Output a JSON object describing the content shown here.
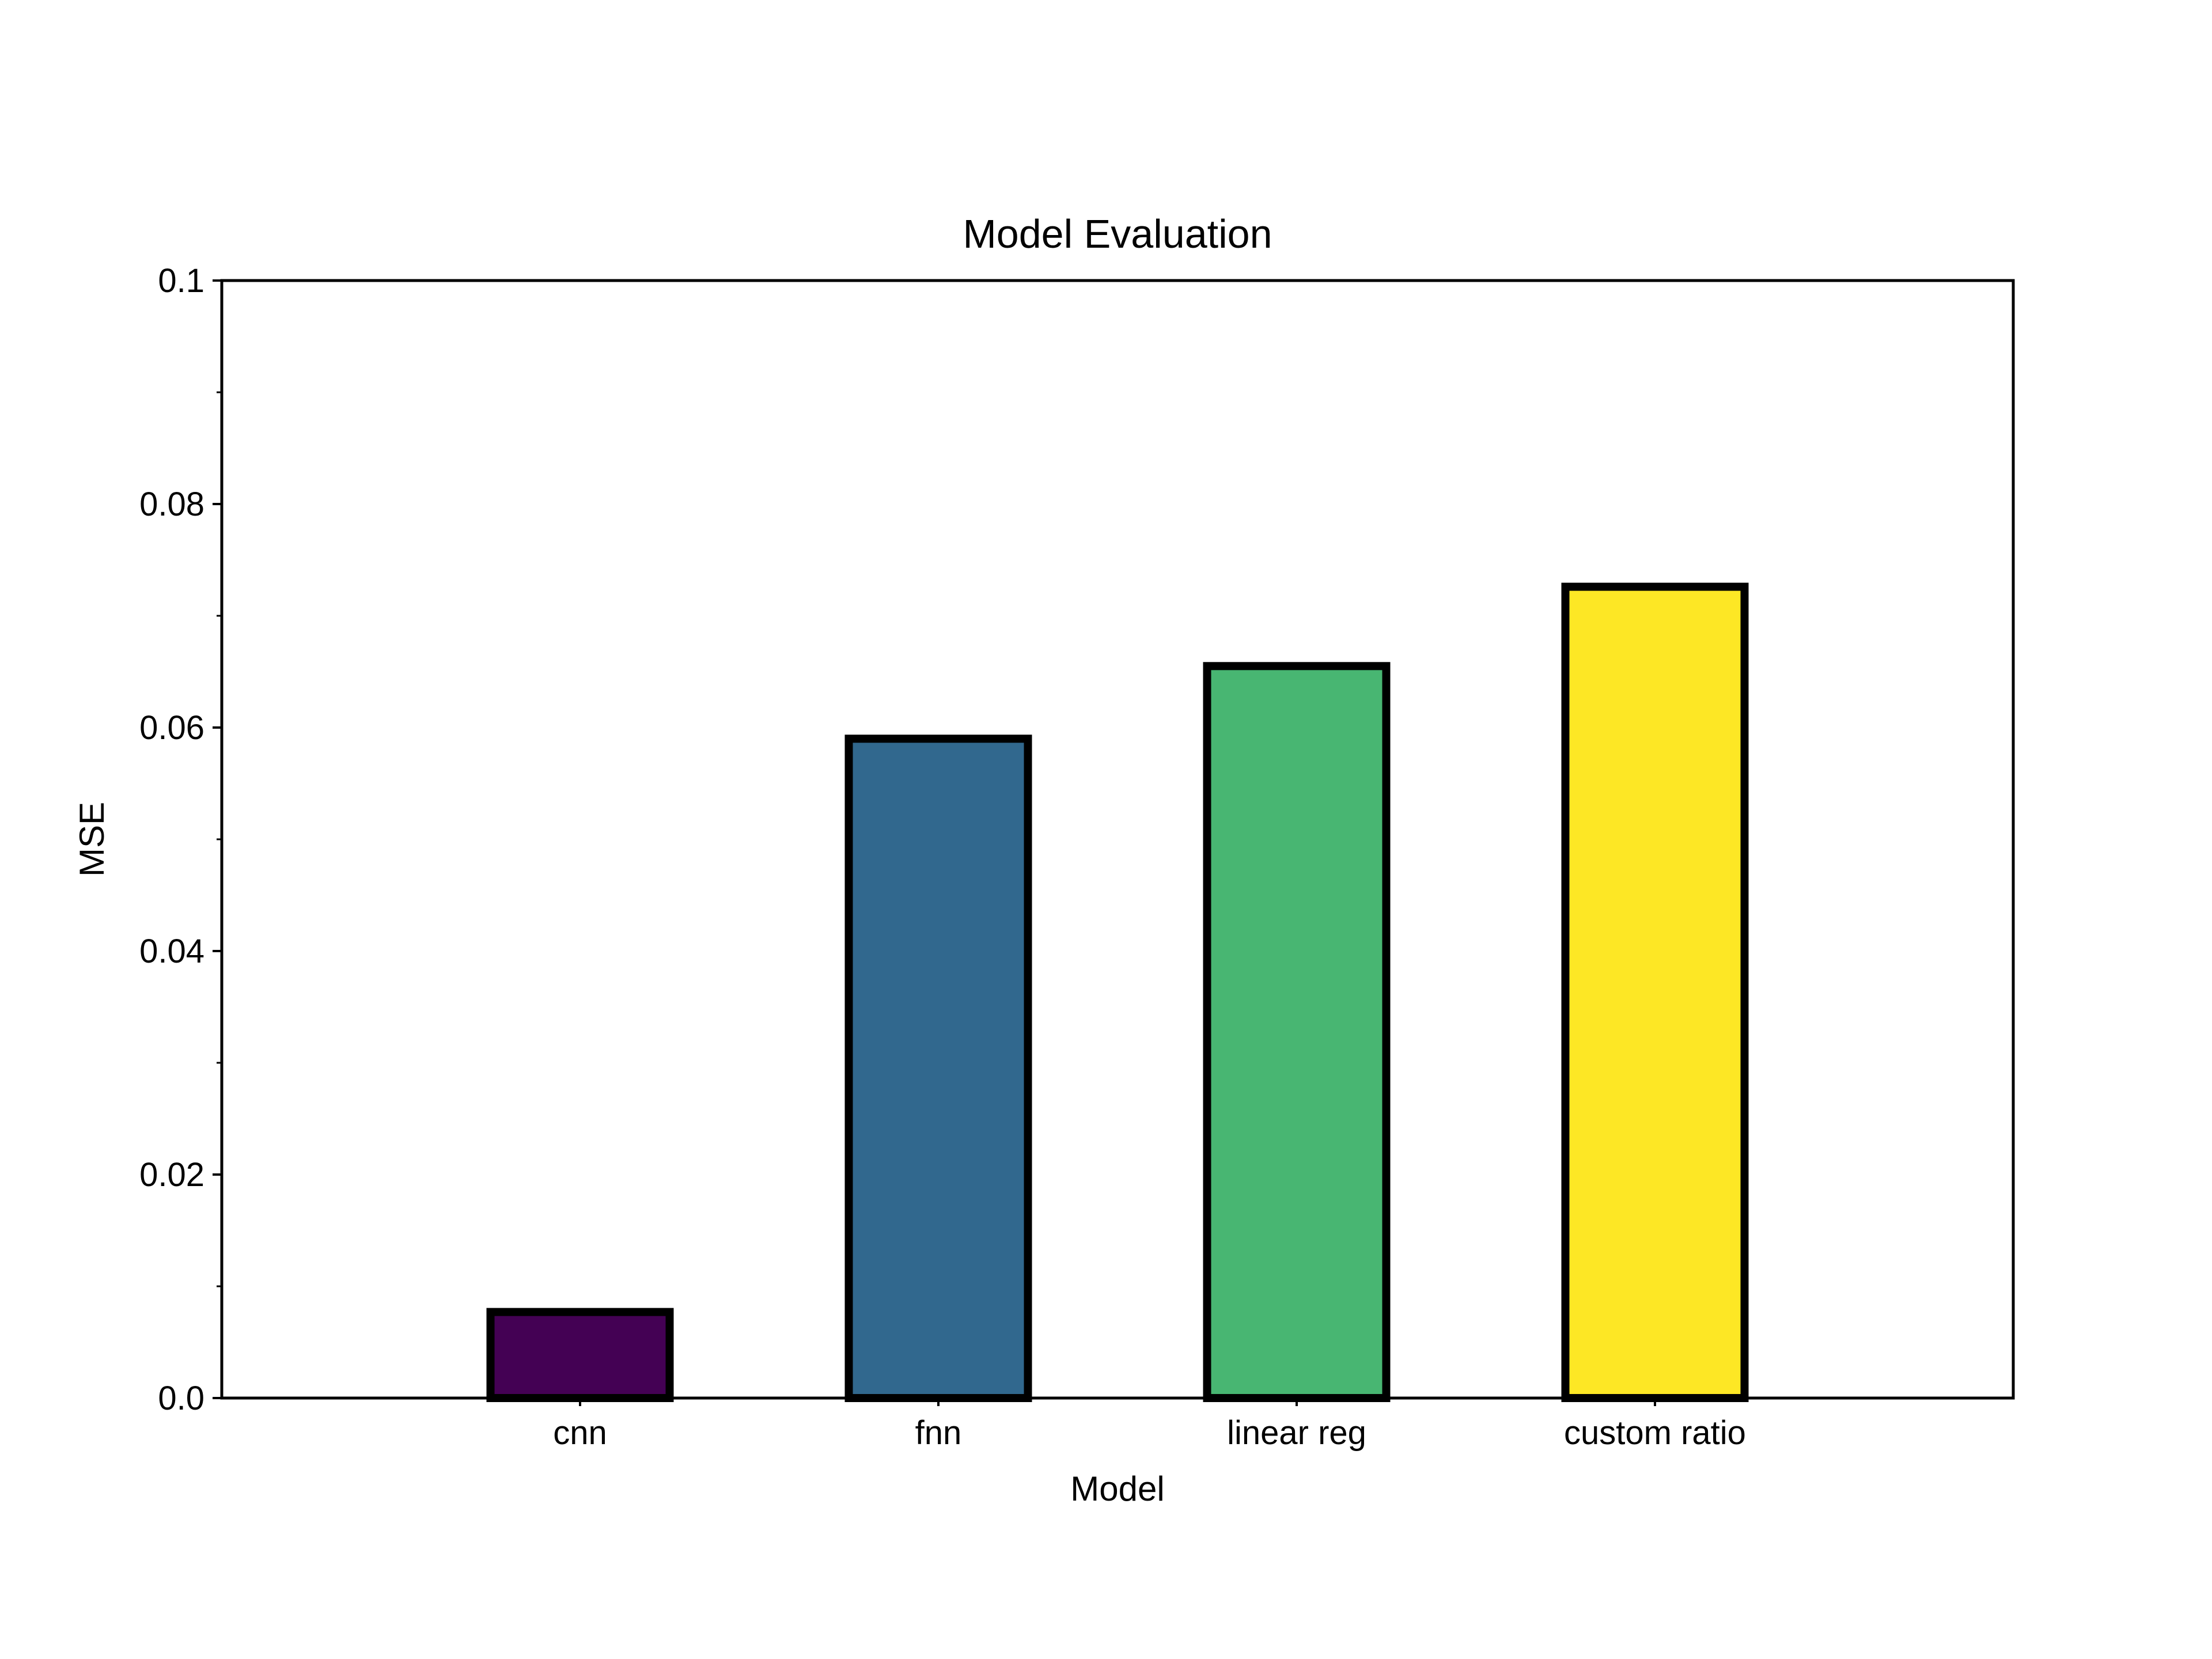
{
  "chart_data": {
    "type": "bar",
    "title": "Model Evaluation",
    "xlabel": "Model",
    "ylabel": "MSE",
    "categories": [
      "cnn",
      "fnn",
      "linear reg",
      "custom ratio"
    ],
    "values": [
      0.0077,
      0.059,
      0.0655,
      0.0726
    ],
    "ylim": [
      0,
      0.1
    ],
    "yticks": [
      0.0,
      0.02,
      0.04,
      0.06,
      0.08,
      0.1
    ],
    "ytick_labels": [
      "0.0",
      "0.02",
      "0.04",
      "0.06",
      "0.08",
      "0.1"
    ],
    "y_minor_ticks": [
      0.01,
      0.03,
      0.05,
      0.07,
      0.09
    ],
    "bar_colors": [
      "#440154",
      "#31688e",
      "#48b672",
      "#fde725"
    ],
    "bar_edge_color": "#000000",
    "grid": false,
    "legend": null
  }
}
